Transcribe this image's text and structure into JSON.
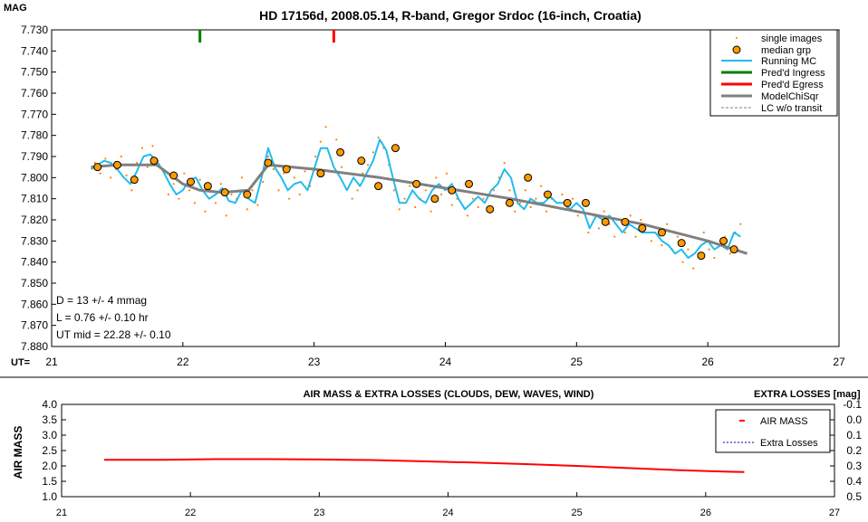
{
  "chart_data": [
    {
      "type": "scatter",
      "title": "HD 17156d, 2008.05.14, R-band, Gregor Srdoc (16-inch, Croatia)",
      "ylabel": "MAG",
      "xlabel": "UT=",
      "xlim": [
        21,
        27
      ],
      "ylim": [
        7.73,
        7.88
      ],
      "y_inverted": true,
      "x_ticks": [
        "21",
        "22",
        "23",
        "24",
        "25",
        "26",
        "27"
      ],
      "y_ticks": [
        "7.730",
        "7.740",
        "7.750",
        "7.760",
        "7.770",
        "7.780",
        "7.790",
        "7.800",
        "7.810",
        "7.820",
        "7.830",
        "7.840",
        "7.850",
        "7.860",
        "7.870",
        "7.880"
      ],
      "legend": {
        "placement": "top-right",
        "entries": [
          "single images",
          "median grp",
          "Running MC",
          "Pred'd Ingress",
          "Pred'd Egress",
          "ModelChiSqr",
          "LC w/o transit"
        ]
      },
      "annotations": [
        "D = 13 +/- 4 mmag",
        "L = 0.76 +/- 0.10 hr",
        "UT mid = 22.28 +/- 0.10"
      ],
      "ingress_ut": 22.13,
      "egress_ut": 23.15,
      "colors": {
        "single": "#ff7f00",
        "median_fill": "#ff9900",
        "running": "#22bbee",
        "ingress": "#008000",
        "egress": "#ff0000",
        "model": "#808080",
        "wo_transit": "#808080"
      },
      "series": [
        {
          "name": "median grp",
          "x": [
            21.35,
            21.5,
            21.63,
            21.78,
            21.93,
            22.06,
            22.19,
            22.32,
            22.49,
            22.65,
            22.79,
            23.05,
            23.2,
            23.36,
            23.49,
            23.62,
            23.78,
            23.92,
            24.05,
            24.18,
            24.34,
            24.49,
            24.63,
            24.78,
            24.93,
            25.07,
            25.22,
            25.37,
            25.5,
            25.65,
            25.8,
            25.95,
            26.12,
            26.2
          ],
          "y": [
            7.795,
            7.794,
            7.801,
            7.792,
            7.799,
            7.802,
            7.804,
            7.807,
            7.808,
            7.793,
            7.796,
            7.798,
            7.788,
            7.792,
            7.804,
            7.786,
            7.803,
            7.81,
            7.806,
            7.803,
            7.815,
            7.812,
            7.8,
            7.808,
            7.812,
            7.812,
            7.821,
            7.821,
            7.824,
            7.826,
            7.831,
            7.837,
            7.83,
            7.834
          ]
        },
        {
          "name": "Running MC",
          "x": [
            21.3,
            21.35,
            21.4,
            21.45,
            21.5,
            21.55,
            21.6,
            21.65,
            21.7,
            21.75,
            21.8,
            21.85,
            21.9,
            21.95,
            22.0,
            22.05,
            22.1,
            22.15,
            22.2,
            22.25,
            22.3,
            22.35,
            22.4,
            22.45,
            22.5,
            22.55,
            22.6,
            22.65,
            22.7,
            22.75,
            22.8,
            22.85,
            22.9,
            22.95,
            23.0,
            23.05,
            23.1,
            23.15,
            23.2,
            23.25,
            23.3,
            23.35,
            23.4,
            23.45,
            23.5,
            23.55,
            23.6,
            23.65,
            23.7,
            23.75,
            23.8,
            23.85,
            23.9,
            23.95,
            24.0,
            24.05,
            24.1,
            24.15,
            24.2,
            24.25,
            24.3,
            24.35,
            24.4,
            24.45,
            24.5,
            24.55,
            24.6,
            24.65,
            24.7,
            24.75,
            24.8,
            24.85,
            24.9,
            24.95,
            25.0,
            25.05,
            25.1,
            25.15,
            25.2,
            25.25,
            25.3,
            25.35,
            25.4,
            25.45,
            25.5,
            25.55,
            25.6,
            25.65,
            25.7,
            25.75,
            25.8,
            25.85,
            25.9,
            25.95,
            26.0,
            26.05,
            26.1,
            26.15,
            26.2,
            26.25
          ],
          "y": [
            7.796,
            7.794,
            7.792,
            7.793,
            7.796,
            7.8,
            7.803,
            7.797,
            7.79,
            7.789,
            7.792,
            7.797,
            7.803,
            7.808,
            7.806,
            7.801,
            7.8,
            7.806,
            7.81,
            7.808,
            7.805,
            7.811,
            7.812,
            7.806,
            7.81,
            7.812,
            7.8,
            7.786,
            7.795,
            7.8,
            7.806,
            7.803,
            7.802,
            7.806,
            7.796,
            7.786,
            7.786,
            7.795,
            7.8,
            7.806,
            7.8,
            7.804,
            7.798,
            7.792,
            7.782,
            7.787,
            7.8,
            7.812,
            7.812,
            7.806,
            7.81,
            7.812,
            7.806,
            7.803,
            7.806,
            7.803,
            7.81,
            7.815,
            7.812,
            7.809,
            7.812,
            7.806,
            7.803,
            7.796,
            7.8,
            7.812,
            7.815,
            7.81,
            7.812,
            7.812,
            7.809,
            7.812,
            7.812,
            7.815,
            7.812,
            7.815,
            7.824,
            7.818,
            7.82,
            7.818,
            7.822,
            7.826,
            7.822,
            7.824,
            7.826,
            7.826,
            7.826,
            7.83,
            7.832,
            7.836,
            7.834,
            7.838,
            7.836,
            7.832,
            7.83,
            7.834,
            7.832,
            7.834,
            7.826,
            7.828
          ]
        },
        {
          "name": "ModelChiSqr",
          "x": [
            21.3,
            21.5,
            21.8,
            22.0,
            22.13,
            22.3,
            22.5,
            22.65,
            23.0,
            23.5,
            24.0,
            24.5,
            25.0,
            25.5,
            26.0,
            26.3
          ],
          "y": [
            7.795,
            7.794,
            7.794,
            7.803,
            7.806,
            7.807,
            7.806,
            7.794,
            7.796,
            7.8,
            7.805,
            7.81,
            7.816,
            7.822,
            7.83,
            7.836
          ]
        },
        {
          "name": "single images",
          "x": [
            21.33,
            21.37,
            21.41,
            21.45,
            21.49,
            21.53,
            21.57,
            21.61,
            21.65,
            21.69,
            21.73,
            21.77,
            21.81,
            21.85,
            21.89,
            21.93,
            21.97,
            22.01,
            22.05,
            22.09,
            22.13,
            22.17,
            22.21,
            22.25,
            22.29,
            22.33,
            22.37,
            22.41,
            22.45,
            22.49,
            22.53,
            22.57,
            22.61,
            22.65,
            22.69,
            22.73,
            22.77,
            22.81,
            22.85,
            22.89,
            22.93,
            22.97,
            23.01,
            23.05,
            23.09,
            23.13,
            23.17,
            23.21,
            23.25,
            23.29,
            23.33,
            23.37,
            23.41,
            23.45,
            23.49,
            23.53,
            23.57,
            23.61,
            23.65,
            23.69,
            23.73,
            23.77,
            23.81,
            23.85,
            23.89,
            23.93,
            23.97,
            24.01,
            24.05,
            24.09,
            24.13,
            24.17,
            24.21,
            24.25,
            24.29,
            24.33,
            24.37,
            24.41,
            24.45,
            24.49,
            24.53,
            24.57,
            24.61,
            24.65,
            24.69,
            24.73,
            24.77,
            24.81,
            24.85,
            24.89,
            24.93,
            24.97,
            25.01,
            25.05,
            25.09,
            25.13,
            25.17,
            25.21,
            25.25,
            25.29,
            25.33,
            25.37,
            25.41,
            25.45,
            25.49,
            25.53,
            25.57,
            25.61,
            25.65,
            25.69,
            25.73,
            25.77,
            25.81,
            25.85,
            25.89,
            25.93,
            25.97,
            26.01,
            26.05,
            26.09,
            26.13,
            26.17,
            26.21,
            26.25
          ],
          "y": [
            7.793,
            7.798,
            7.791,
            7.8,
            7.796,
            7.79,
            7.799,
            7.806,
            7.793,
            7.786,
            7.795,
            7.785,
            7.792,
            7.796,
            7.808,
            7.803,
            7.81,
            7.798,
            7.806,
            7.812,
            7.801,
            7.816,
            7.806,
            7.812,
            7.803,
            7.818,
            7.808,
            7.81,
            7.8,
            7.815,
            7.806,
            7.813,
            7.802,
            7.79,
            7.796,
            7.806,
            7.798,
            7.81,
            7.8,
            7.808,
            7.797,
            7.804,
            7.79,
            7.783,
            7.776,
            7.791,
            7.782,
            7.795,
            7.798,
            7.81,
            7.806,
            7.798,
            7.794,
            7.788,
            7.781,
            7.786,
            7.794,
            7.806,
            7.815,
            7.81,
            7.804,
            7.814,
            7.81,
            7.806,
            7.816,
            7.8,
            7.808,
            7.798,
            7.813,
            7.81,
            7.806,
            7.818,
            7.81,
            7.814,
            7.81,
            7.816,
            7.806,
            7.8,
            7.793,
            7.806,
            7.816,
            7.812,
            7.806,
            7.814,
            7.81,
            7.804,
            7.816,
            7.81,
            7.814,
            7.808,
            7.814,
            7.81,
            7.818,
            7.812,
            7.826,
            7.818,
            7.824,
            7.816,
            7.822,
            7.828,
            7.82,
            7.826,
            7.818,
            7.828,
            7.82,
            7.826,
            7.83,
            7.824,
            7.832,
            7.822,
            7.834,
            7.828,
            7.84,
            7.834,
            7.843,
            7.836,
            7.826,
            7.834,
            7.838,
            7.832,
            7.828,
            7.836,
            7.826,
            7.822
          ]
        }
      ]
    },
    {
      "type": "line",
      "title": "AIR MASS & EXTRA LOSSES (CLOUDS, DEW, WAVES, WIND)",
      "ylabel": "AIR MASS",
      "y2label": "EXTRA LOSSES [mag]",
      "xlim": [
        21,
        27
      ],
      "ylim": [
        1.0,
        4.0
      ],
      "y2lim": [
        -0.1,
        0.5
      ],
      "y2_inverted": true,
      "x_ticks": [
        "21",
        "22",
        "23",
        "24",
        "25",
        "26",
        "27"
      ],
      "y_ticks": [
        "4.0",
        "3.5",
        "3.0",
        "2.5",
        "2.0",
        "1.5",
        "1.0"
      ],
      "y2_ticks": [
        "-0.1",
        "0.0",
        "0.1",
        "0.2",
        "0.3",
        "0.4",
        "0.5"
      ],
      "legend": {
        "placement": "top-right",
        "entries": [
          "AIR MASS",
          "Extra Losses"
        ]
      },
      "colors": {
        "airmass": "#ff0000",
        "extra": "#0000aa"
      },
      "series": [
        {
          "name": "AIR MASS",
          "x": [
            21.33,
            21.8,
            22.2,
            22.6,
            23.0,
            23.4,
            23.8,
            24.2,
            24.6,
            25.0,
            25.4,
            25.8,
            26.2,
            26.3
          ],
          "y": [
            2.2,
            2.2,
            2.22,
            2.22,
            2.21,
            2.19,
            2.15,
            2.11,
            2.06,
            2.0,
            1.93,
            1.86,
            1.81,
            1.8
          ]
        }
      ]
    }
  ]
}
